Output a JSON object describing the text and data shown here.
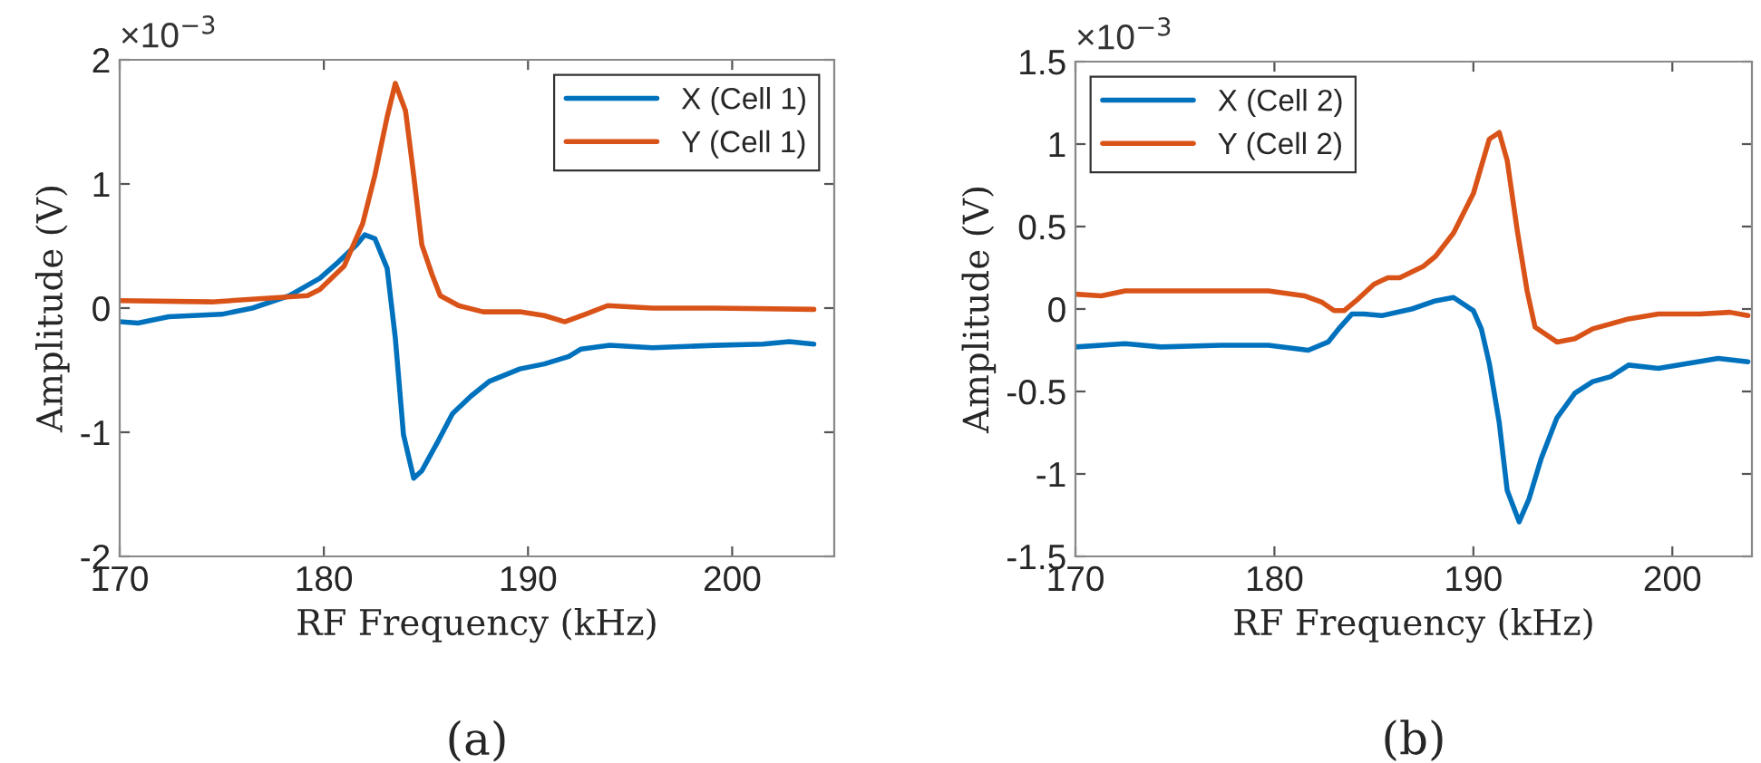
{
  "chart_data": [
    {
      "type": "line",
      "xlabel": "RF Frequency (kHz)",
      "ylabel": "Amplitude (V)",
      "annotations": [
        "×10$^{−3}$",
        "(a)"
      ],
      "xlim": [
        170,
        205
      ],
      "xticks": [
        170,
        180,
        190,
        200
      ],
      "ylim": [
        -2,
        2
      ],
      "yticks": [
        -2,
        -1,
        0,
        1,
        2
      ],
      "grid": false,
      "legend": "top right",
      "line_style": "solid",
      "marker": "none",
      "series": [
        {
          "name": "X (Cell 1)",
          "color": "#0072bd",
          "x": [
            170,
            170.9,
            172.4,
            175,
            176.5,
            178.3,
            179.8,
            180.7,
            181.6,
            182,
            182.5,
            183.1,
            183.5,
            183.9,
            184.4,
            184.8,
            185.6,
            186.3,
            187.2,
            188.1,
            189.6,
            190.8,
            192,
            192.6,
            194,
            196.1,
            199.1,
            201.5,
            202.8,
            204
          ],
          "values": [
            -0.11,
            -0.12,
            -0.07,
            -0.05,
            0,
            0.1,
            0.24,
            0.37,
            0.51,
            0.59,
            0.56,
            0.32,
            -0.24,
            -1.02,
            -1.37,
            -1.31,
            -1.07,
            -0.85,
            -0.71,
            -0.59,
            -0.49,
            -0.45,
            -0.39,
            -0.33,
            -0.3,
            -0.32,
            -0.3,
            -0.29,
            -0.27,
            -0.29
          ]
        },
        {
          "name": "Y (Cell 1)",
          "color": "#d95319",
          "x": [
            170,
            174.5,
            179.2,
            179.8,
            181,
            181.9,
            182.5,
            183.1,
            183.5,
            184,
            184.4,
            184.8,
            185.3,
            185.7,
            186.6,
            187.8,
            189.6,
            190.8,
            191.8,
            192.8,
            193.9,
            196.1,
            199.1,
            204
          ],
          "values": [
            0.06,
            0.05,
            0.1,
            0.15,
            0.34,
            0.68,
            1.07,
            1.54,
            1.81,
            1.59,
            1.07,
            0.51,
            0.27,
            0.1,
            0.02,
            -0.03,
            -0.03,
            -0.06,
            -0.11,
            -0.05,
            0.02,
            0,
            0,
            -0.01
          ]
        }
      ]
    },
    {
      "type": "line",
      "xlabel": "RF Frequency (kHz)",
      "ylabel": "Amplitude (V)",
      "annotations": [
        "×10$^{−3}$",
        "(b)"
      ],
      "xlim": [
        170,
        204
      ],
      "xticks": [
        170,
        180,
        190,
        200
      ],
      "ylim": [
        -1.5,
        1.5
      ],
      "yticks": [
        -1.5,
        -1,
        -0.5,
        0,
        0.5,
        1,
        1.5
      ],
      "grid": false,
      "legend": "top left",
      "line_style": "solid",
      "marker": "none",
      "series": [
        {
          "name": "X (Cell 2)",
          "color": "#0072bd",
          "x": [
            170,
            172.5,
            174.3,
            177.3,
            179.7,
            181.7,
            182.7,
            183.3,
            183.9,
            184.5,
            185.4,
            186.9,
            188.1,
            189,
            190,
            190.4,
            190.8,
            191.3,
            191.7,
            192.3,
            192.8,
            193.4,
            194.2,
            195.1,
            196,
            196.9,
            197.8,
            199.3,
            200.8,
            202.3,
            203.8
          ],
          "values": [
            -0.23,
            -0.21,
            -0.23,
            -0.22,
            -0.22,
            -0.25,
            -0.2,
            -0.11,
            -0.03,
            -0.03,
            -0.04,
            0,
            0.05,
            0.07,
            -0.01,
            -0.12,
            -0.33,
            -0.69,
            -1.1,
            -1.29,
            -1.15,
            -0.91,
            -0.66,
            -0.51,
            -0.44,
            -0.41,
            -0.34,
            -0.36,
            -0.33,
            -0.3,
            -0.32
          ]
        },
        {
          "name": "Y (Cell 2)",
          "color": "#d95319",
          "x": [
            170,
            171.3,
            172.5,
            175.2,
            179.7,
            181.5,
            182.4,
            183,
            183.5,
            184.2,
            185,
            185.7,
            186.3,
            187.5,
            188.1,
            189,
            190,
            190.8,
            191.3,
            191.7,
            192.2,
            192.7,
            193.1,
            194.2,
            195.1,
            196,
            197.8,
            199.3,
            201.4,
            202.9,
            203.8
          ],
          "values": [
            0.09,
            0.08,
            0.11,
            0.11,
            0.11,
            0.08,
            0.04,
            -0.01,
            -0.01,
            0.06,
            0.15,
            0.19,
            0.19,
            0.26,
            0.32,
            0.46,
            0.7,
            1.03,
            1.07,
            0.9,
            0.48,
            0.11,
            -0.11,
            -0.2,
            -0.18,
            -0.12,
            -0.06,
            -0.03,
            -0.03,
            -0.02,
            -0.04
          ]
        }
      ]
    }
  ]
}
